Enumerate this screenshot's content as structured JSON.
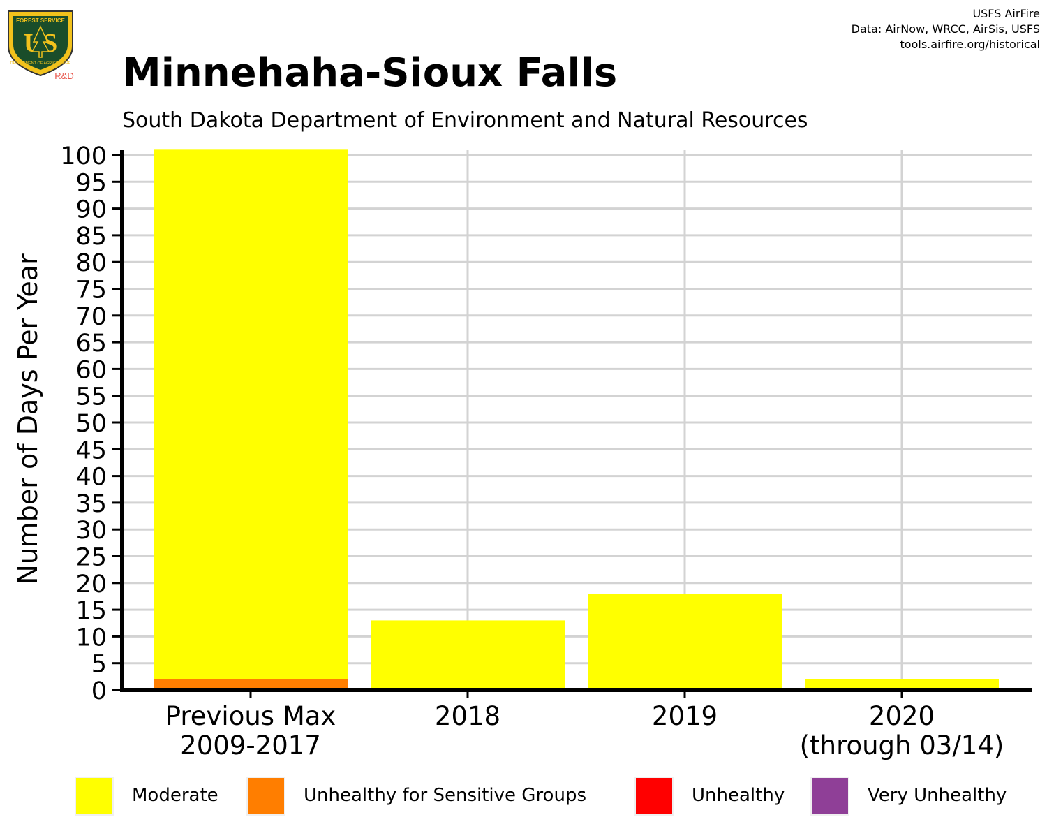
{
  "logo": {
    "top_text": "FOREST SERVICE",
    "letters": "US",
    "bottom_text": "DEPARTMENT OF AGRICULTURE",
    "badge_text": "R&D"
  },
  "credits": {
    "line1": "USFS AirFire",
    "line2": "Data: AirNow, WRCC, AirSis, USFS",
    "line3": "tools.airfire.org/historical"
  },
  "chart_data": {
    "type": "bar",
    "stacked": true,
    "title": "Minnehaha-Sioux Falls",
    "subtitle": "South Dakota Department of Environment and Natural Resources",
    "ylabel": "Number of Days Per Year",
    "xlabel": "",
    "ylim": [
      0,
      100
    ],
    "yticks": [
      0,
      5,
      10,
      15,
      20,
      25,
      30,
      35,
      40,
      45,
      50,
      55,
      60,
      65,
      70,
      75,
      80,
      85,
      90,
      95,
      100
    ],
    "categories": [
      [
        "Previous Max",
        "2009-2017"
      ],
      [
        "2018"
      ],
      [
        "2019"
      ],
      [
        "2020",
        "(through 03/14)"
      ]
    ],
    "series": [
      {
        "name": "Unhealthy for Sensitive Groups",
        "color": "#ff7e00",
        "values": [
          2,
          0,
          0,
          0
        ]
      },
      {
        "name": "Moderate",
        "color": "#ffff00",
        "values": [
          99,
          13,
          18,
          2
        ]
      },
      {
        "name": "Unhealthy",
        "color": "#ff0000",
        "values": [
          0,
          0,
          0,
          0
        ]
      },
      {
        "name": "Very Unhealthy",
        "color": "#8f3f97",
        "values": [
          0,
          0,
          0,
          0
        ]
      }
    ],
    "legend": [
      {
        "name": "Moderate",
        "color": "#ffff00"
      },
      {
        "name": "Unhealthy for Sensitive Groups",
        "color": "#ff7e00"
      },
      {
        "name": "Unhealthy",
        "color": "#ff0000"
      },
      {
        "name": "Very Unhealthy",
        "color": "#8f3f97"
      }
    ],
    "legend_position": "bottom",
    "grid": true
  }
}
